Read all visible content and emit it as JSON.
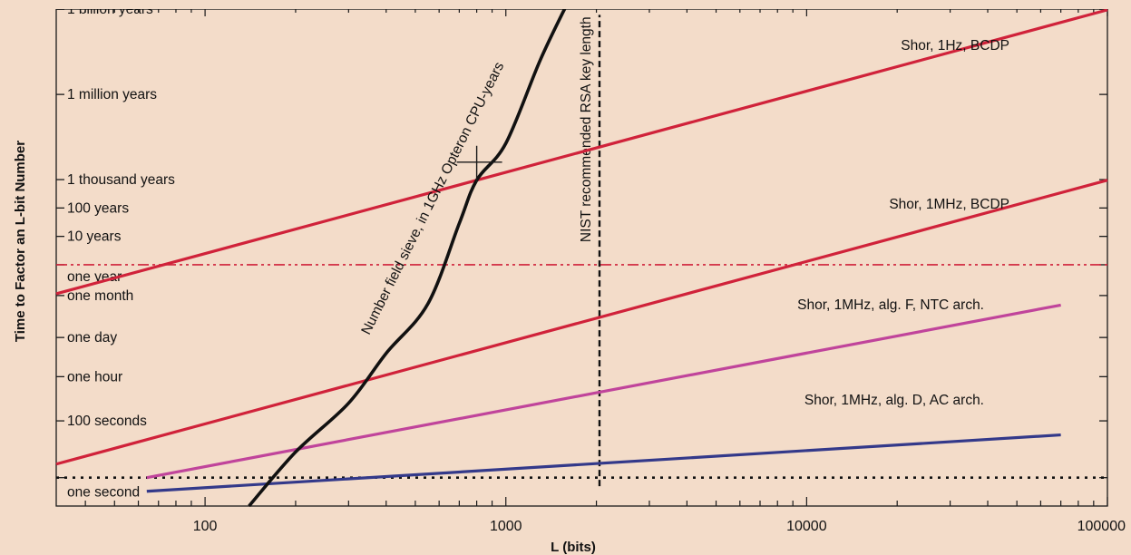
{
  "chart_data": {
    "type": "line",
    "title": "",
    "xlabel": "L (bits)",
    "ylabel": "Time to Factor an L-bit Number",
    "x_scale": "log",
    "y_scale": "log",
    "xlim": [
      32,
      100000
    ],
    "ylim_seconds": [
      0.1,
      3.2e+16
    ],
    "x_ticks": [
      {
        "value": 100,
        "label": "100"
      },
      {
        "value": 1000,
        "label": "1000"
      },
      {
        "value": 10000,
        "label": "10000"
      },
      {
        "value": 100000,
        "label": "100000"
      }
    ],
    "y_ticks": [
      {
        "seconds": 3.15e+16,
        "label": "1 billion years"
      },
      {
        "seconds": 31500000000000.0,
        "label": "1 million years"
      },
      {
        "seconds": 31500000000.0,
        "label": "1 thousand years"
      },
      {
        "seconds": 3150000000.0,
        "label": "100 years"
      },
      {
        "seconds": 315000000.0,
        "label": "10 years"
      },
      {
        "seconds": 31500000.0,
        "label": "one year"
      },
      {
        "seconds": 2600000.0,
        "label": "one month"
      },
      {
        "seconds": 86400,
        "label": "one day"
      },
      {
        "seconds": 3600,
        "label": "one hour"
      },
      {
        "seconds": 100,
        "label": "100 seconds"
      },
      {
        "seconds": 1,
        "label": "one second"
      }
    ],
    "series": [
      {
        "name": "Shor, 1Hz, BCDP",
        "color": "#d0223a",
        "x": [
          32,
          100000
        ],
        "y": [
          3000000.0,
          3e+16
        ]
      },
      {
        "name": "Shor, 1MHz, BCDP",
        "color": "#d0223a",
        "x": [
          32,
          100000
        ],
        "y": [
          3.0,
          30000000000.0
        ]
      },
      {
        "name": "Shor, 1MHz, alg. F, NTC arch.",
        "color": "#c0449b",
        "x": [
          64,
          70000
        ],
        "y": [
          1.0,
          1200000.0
        ]
      },
      {
        "name": "Shor, 1MHz, alg. D, AC arch.",
        "color": "#33398a",
        "x": [
          64,
          70000
        ],
        "y": [
          0.33,
          32
        ]
      },
      {
        "name": "Number field sieve, in 1GHz Opteron CPU-years",
        "color": "#111111",
        "x": [
          140,
          200,
          300,
          400,
          550,
          700,
          800,
          1000,
          1300,
          1600
        ],
        "y": [
          0.1,
          8,
          420,
          24000.0,
          1300000.0,
          900000000.0,
          30000000000.0,
          600000000000.0,
          500000000000000.0,
          5e+16
        ]
      }
    ],
    "reference_lines": [
      {
        "type": "horizontal",
        "seconds": 31500000.0,
        "style": "dash-dot",
        "color": "#d0223a"
      },
      {
        "type": "horizontal",
        "seconds": 1,
        "style": "dotted",
        "color": "#111111"
      },
      {
        "type": "vertical",
        "x": 2048,
        "label": "NIST recommended RSA key length",
        "style": "dashed",
        "color": "#111111",
        "y_range": [
          0.5,
          2e+16
        ]
      }
    ],
    "marker": {
      "x": 800,
      "seconds": 130000000000.0,
      "style": "cross"
    },
    "grid": false
  }
}
